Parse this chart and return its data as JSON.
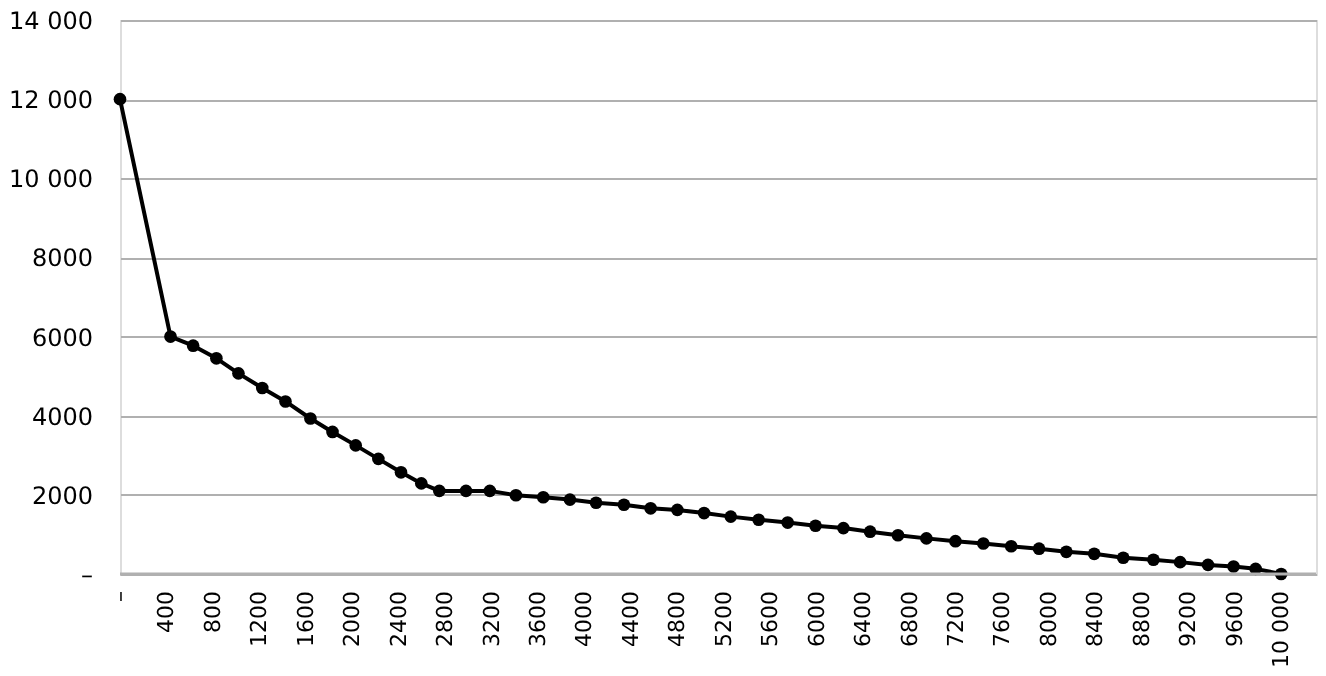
{
  "chart_data": {
    "type": "line",
    "x": [
      0,
      435,
      630,
      830,
      1020,
      1225,
      1425,
      1640,
      1830,
      2030,
      2225,
      2420,
      2595,
      2750,
      2980,
      3185,
      3410,
      3645,
      3875,
      4100,
      4340,
      4570,
      4800,
      5030,
      5260,
      5500,
      5750,
      5990,
      6230,
      6460,
      6700,
      6945,
      7195,
      7435,
      7675,
      7915,
      8150,
      8390,
      8640,
      8900,
      9130,
      9370,
      9590,
      9780,
      10000
    ],
    "series": [
      {
        "color": "#000000",
        "values": [
          12000,
          6000,
          5770,
          5450,
          5070,
          4700,
          4360,
          3930,
          3590,
          3250,
          2910,
          2570,
          2290,
          2100,
          2100,
          2100,
          1990,
          1940,
          1880,
          1800,
          1750,
          1660,
          1620,
          1540,
          1450,
          1370,
          1300,
          1220,
          1160,
          1070,
          980,
          900,
          830,
          770,
          700,
          640,
          560,
          510,
          410,
          360,
          300,
          230,
          190,
          130,
          0
        ]
      }
    ],
    "xlim": [
      0,
      10300
    ],
    "xticks": [
      {
        "value": 0,
        "label": "–"
      },
      400,
      800,
      1200,
      1600,
      2000,
      2400,
      2800,
      3200,
      3600,
      4000,
      4400,
      4800,
      5200,
      5600,
      6000,
      6400,
      6800,
      7200,
      7600,
      8000,
      8400,
      8800,
      9200,
      9600,
      {
        "value": 10000,
        "label": "10 000"
      }
    ],
    "ylim": [
      0,
      14000
    ],
    "yticks": [
      {
        "value": 0,
        "label": "–"
      },
      2000,
      4000,
      6000,
      8000,
      {
        "value": 10000,
        "label": "10 000"
      },
      {
        "value": 12000,
        "label": "12 000"
      },
      {
        "value": 14000,
        "label": "14 000"
      }
    ],
    "grid": "y",
    "marker": "circle",
    "line_style": "solid"
  }
}
